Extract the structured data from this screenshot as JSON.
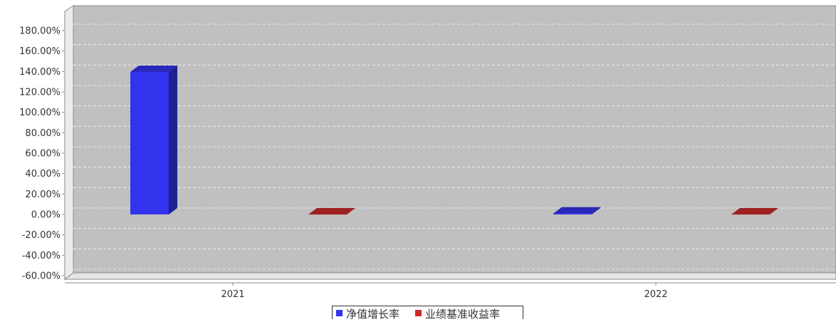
{
  "chart_data": {
    "type": "bar",
    "style": "3d",
    "categories": [
      "2021",
      "2022"
    ],
    "series": [
      {
        "name": "净值增长率",
        "color": "#3333ee",
        "values": [
          139.5,
          0.9
        ]
      },
      {
        "name": "业绩基准收益率",
        "color": "#cc2a2a",
        "values": [
          -0.1,
          -0.1
        ]
      }
    ],
    "y_ticks": [
      "180.00%",
      "160.00%",
      "140.00%",
      "120.00%",
      "100.00%",
      "80.00%",
      "60.00%",
      "40.00%",
      "20.00%",
      "0.00%",
      "-20.00%",
      "-40.00%",
      "-60.00%"
    ],
    "ylim": [
      -60,
      180
    ],
    "grid": true,
    "legend_position": "bottom-center",
    "plot_background": "#c0c0c0"
  }
}
